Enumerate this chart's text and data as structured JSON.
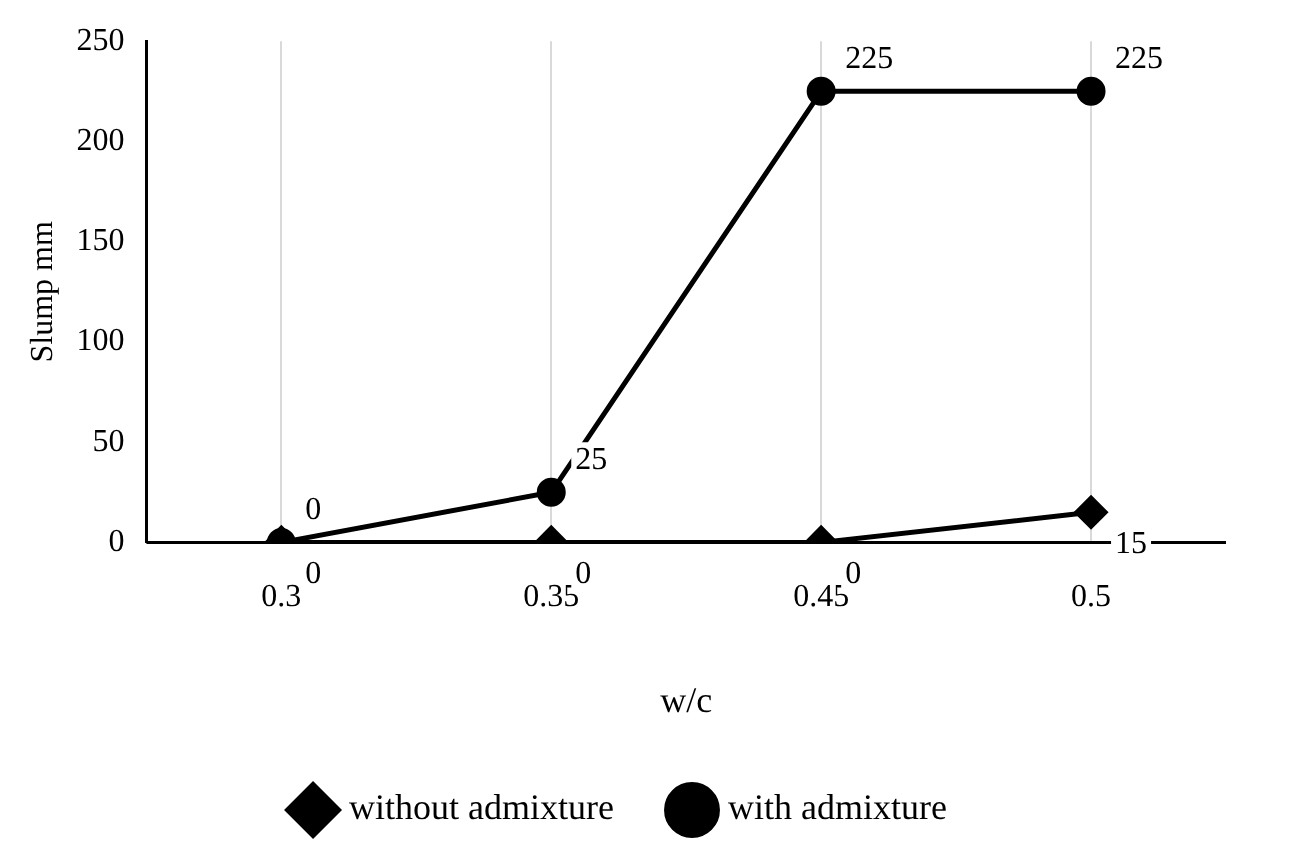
{
  "chart_data": {
    "type": "line",
    "xlabel": "w/c",
    "ylabel": "Slump mm",
    "categories": [
      "0.3",
      "0.35",
      "0.45",
      "0.5"
    ],
    "series": [
      {
        "name": "without admixture",
        "color": "#000000",
        "marker": "diamond",
        "values": [
          0,
          0,
          0,
          15
        ]
      },
      {
        "name": "with admixture",
        "color": "#000000",
        "marker": "circle",
        "values": [
          0,
          25,
          225,
          225
        ]
      }
    ],
    "ylim": [
      0,
      250
    ],
    "yticks": [
      0,
      50,
      100,
      150,
      200,
      250
    ],
    "grid": "x",
    "legend": "bottom",
    "data_labels": true,
    "line_style": "solid"
  }
}
